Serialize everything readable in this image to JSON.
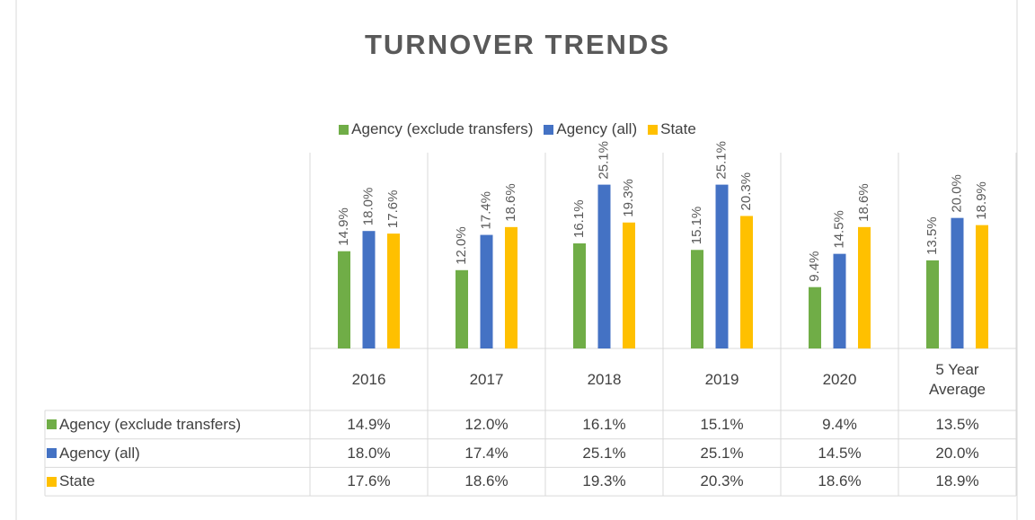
{
  "chart_data": {
    "type": "bar",
    "title": "TURNOVER TRENDS",
    "categories": [
      "2016",
      "2017",
      "2018",
      "2019",
      "2020",
      "5 Year Average"
    ],
    "series": [
      {
        "name": "Agency (exclude transfers)",
        "color": "#70ad47",
        "values": [
          14.9,
          12.0,
          16.1,
          15.1,
          9.4,
          13.5
        ],
        "value_labels": [
          "14.9%",
          "12.0%",
          "16.1%",
          "15.1%",
          "9.4%",
          "13.5%"
        ]
      },
      {
        "name": "Agency (all)",
        "color": "#4472c4",
        "values": [
          18.0,
          17.4,
          25.1,
          25.1,
          14.5,
          20.0
        ],
        "value_labels": [
          "18.0%",
          "17.4%",
          "25.1%",
          "25.1%",
          "14.5%",
          "20.0%"
        ]
      },
      {
        "name": "State",
        "color": "#ffc000",
        "values": [
          17.6,
          18.6,
          19.3,
          20.3,
          18.6,
          18.9
        ],
        "value_labels": [
          "17.6%",
          "18.6%",
          "19.3%",
          "20.3%",
          "18.6%",
          "18.9%"
        ]
      }
    ],
    "ylim": [
      0,
      30
    ],
    "legend": "top",
    "data_table": true
  }
}
